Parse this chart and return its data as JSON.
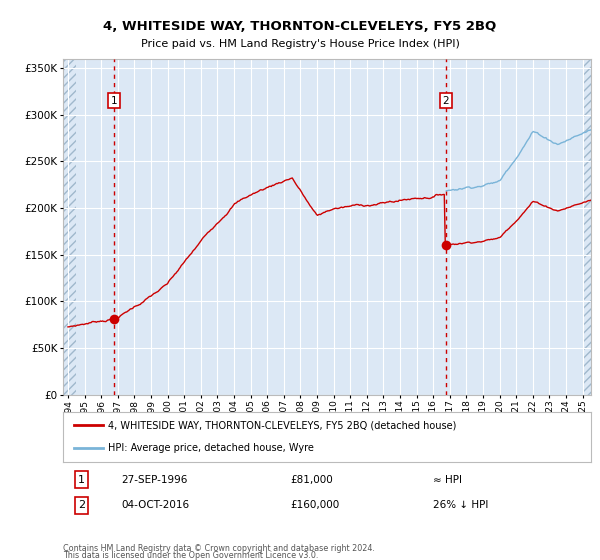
{
  "title": "4, WHITESIDE WAY, THORNTON-CLEVELEYS, FY5 2BQ",
  "subtitle": "Price paid vs. HM Land Registry's House Price Index (HPI)",
  "legend_property": "4, WHITESIDE WAY, THORNTON-CLEVELEYS, FY5 2BQ (detached house)",
  "legend_hpi": "HPI: Average price, detached house, Wyre",
  "annotation1_date": "27-SEP-1996",
  "annotation1_price": "£81,000",
  "annotation1_hpi": "≈ HPI",
  "annotation2_date": "04-OCT-2016",
  "annotation2_price": "£160,000",
  "annotation2_hpi": "26% ↓ HPI",
  "footnote1": "Contains HM Land Registry data © Crown copyright and database right 2024.",
  "footnote2": "This data is licensed under the Open Government Licence v3.0.",
  "sale1_year": 1996.75,
  "sale1_price": 81000,
  "sale2_year": 2016.75,
  "sale2_price": 160000,
  "hpi_line_color": "#7ab4d8",
  "property_line_color": "#cc0000",
  "sale_dot_color": "#cc0000",
  "vline1_color": "#cc0000",
  "vline2_color": "#cc0000",
  "background_color": "#dce8f5",
  "ylim": [
    0,
    360000
  ],
  "xlim_start": 1993.7,
  "xlim_end": 2025.5
}
